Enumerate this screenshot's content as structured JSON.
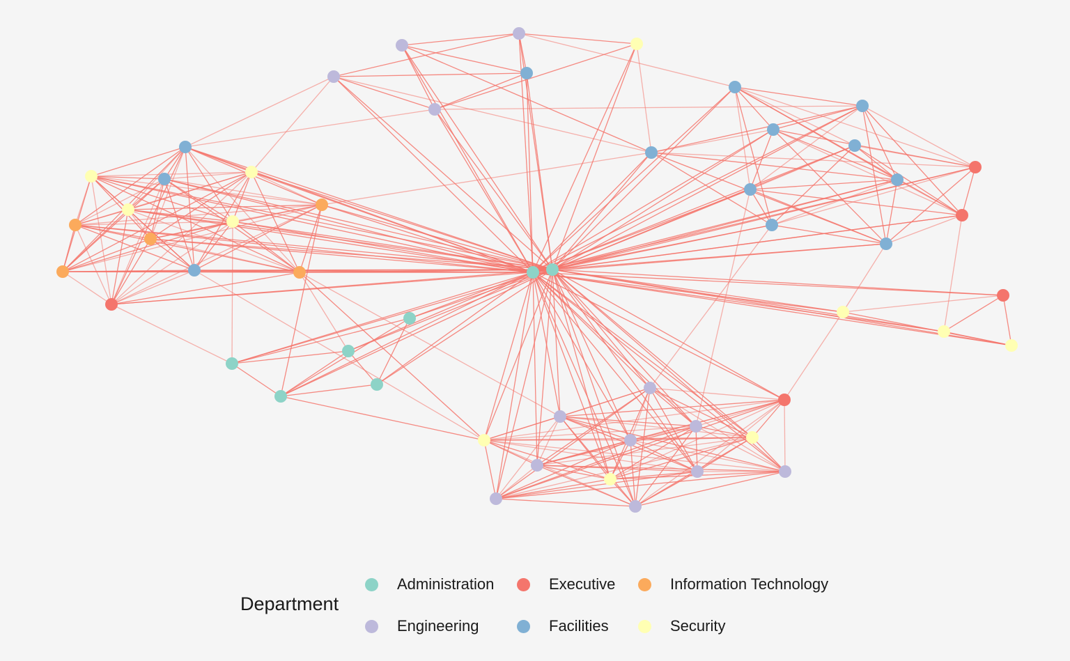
{
  "legend": {
    "title": "Department",
    "items": [
      {
        "key": "admin",
        "label": "Administration",
        "color": "#8dd3c7"
      },
      {
        "key": "exec",
        "label": "Executive",
        "color": "#f4756c"
      },
      {
        "key": "it",
        "label": "Information Technology",
        "color": "#fbaa5c"
      },
      {
        "key": "eng",
        "label": "Engineering",
        "color": "#bdb9db"
      },
      {
        "key": "fac",
        "label": "Facilities",
        "color": "#80b0d4"
      },
      {
        "key": "sec",
        "label": "Security",
        "color": "#ffffb3"
      }
    ]
  },
  "edge_color": "#f4756c",
  "chart_data": {
    "type": "network",
    "nodes": [
      {
        "id": "A1",
        "dept": "Administration"
      },
      {
        "id": "A2",
        "dept": "Administration"
      },
      {
        "id": "A3",
        "dept": "Administration"
      },
      {
        "id": "A4",
        "dept": "Administration"
      },
      {
        "id": "A5",
        "dept": "Administration"
      },
      {
        "id": "A6",
        "dept": "Administration"
      },
      {
        "id": "A7",
        "dept": "Administration"
      },
      {
        "id": "X1",
        "dept": "Executive"
      },
      {
        "id": "X2",
        "dept": "Executive"
      },
      {
        "id": "X3",
        "dept": "Executive"
      },
      {
        "id": "X4",
        "dept": "Executive"
      },
      {
        "id": "X5",
        "dept": "Executive"
      },
      {
        "id": "I1",
        "dept": "Information Technology"
      },
      {
        "id": "I2",
        "dept": "Information Technology"
      },
      {
        "id": "I3",
        "dept": "Information Technology"
      },
      {
        "id": "I4",
        "dept": "Information Technology"
      },
      {
        "id": "I5",
        "dept": "Information Technology"
      },
      {
        "id": "E1",
        "dept": "Engineering"
      },
      {
        "id": "E2",
        "dept": "Engineering"
      },
      {
        "id": "E3",
        "dept": "Engineering"
      },
      {
        "id": "E4",
        "dept": "Engineering"
      },
      {
        "id": "E5",
        "dept": "Engineering"
      },
      {
        "id": "E6",
        "dept": "Engineering"
      },
      {
        "id": "E7",
        "dept": "Engineering"
      },
      {
        "id": "E8",
        "dept": "Engineering"
      },
      {
        "id": "E9",
        "dept": "Engineering"
      },
      {
        "id": "E10",
        "dept": "Engineering"
      },
      {
        "id": "E11",
        "dept": "Engineering"
      },
      {
        "id": "E12",
        "dept": "Engineering"
      },
      {
        "id": "F1",
        "dept": "Facilities"
      },
      {
        "id": "F2",
        "dept": "Facilities"
      },
      {
        "id": "F3",
        "dept": "Facilities"
      },
      {
        "id": "F4",
        "dept": "Facilities"
      },
      {
        "id": "F5",
        "dept": "Facilities"
      },
      {
        "id": "F6",
        "dept": "Facilities"
      },
      {
        "id": "F7",
        "dept": "Facilities"
      },
      {
        "id": "F8",
        "dept": "Facilities"
      },
      {
        "id": "F9",
        "dept": "Facilities"
      },
      {
        "id": "F10",
        "dept": "Facilities"
      },
      {
        "id": "F11",
        "dept": "Facilities"
      },
      {
        "id": "F12",
        "dept": "Facilities"
      },
      {
        "id": "F13",
        "dept": "Facilities"
      },
      {
        "id": "S1",
        "dept": "Security"
      },
      {
        "id": "S2",
        "dept": "Security"
      },
      {
        "id": "S3",
        "dept": "Security"
      },
      {
        "id": "S4",
        "dept": "Security"
      },
      {
        "id": "S5",
        "dept": "Security"
      },
      {
        "id": "S6",
        "dept": "Security"
      },
      {
        "id": "S7",
        "dept": "Security"
      },
      {
        "id": "S8",
        "dept": "Security"
      },
      {
        "id": "S9",
        "dept": "Security"
      },
      {
        "id": "S10",
        "dept": "Security"
      }
    ]
  }
}
